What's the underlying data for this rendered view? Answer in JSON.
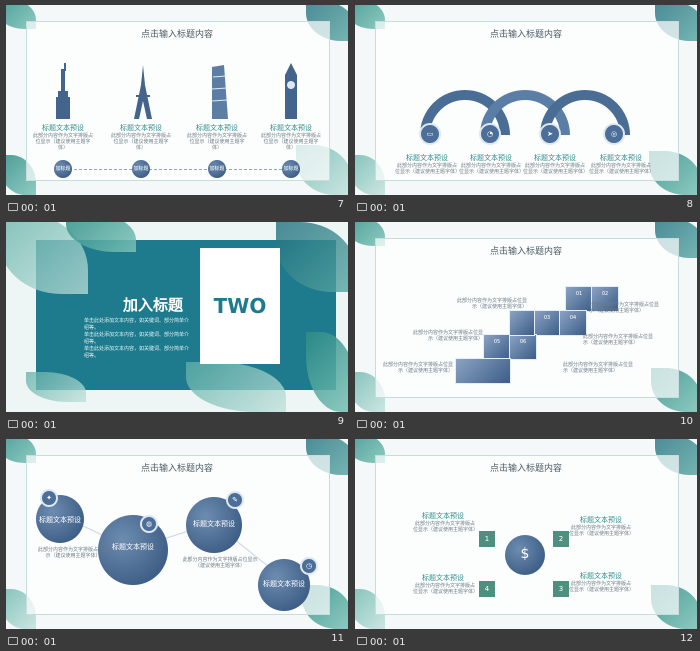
{
  "colors": {
    "accent": "#2e8e8a",
    "panel": "#1e7b8e",
    "stamp": "#3c5d88",
    "bg": "#3a3a3a"
  },
  "slides": [
    {
      "number": "7",
      "time": "00：01",
      "title": "点击输入标题内容",
      "items": [
        {
          "icon": "statue-of-liberty-icon",
          "heading": "标题文本预设",
          "text": "此部分内容作为文字排版占位显示（建议使用主题字体）",
          "tag": "加标题"
        },
        {
          "icon": "eiffel-tower-icon",
          "heading": "标题文本预设",
          "text": "此部分内容作为文字排版占位显示（建议使用主题字体）",
          "tag": "加标题"
        },
        {
          "icon": "leaning-tower-icon",
          "heading": "标题文本预设",
          "text": "此部分内容作为文字排版占位显示（建议使用主题字体）",
          "tag": "加标题"
        },
        {
          "icon": "big-ben-icon",
          "heading": "标题文本预设",
          "text": "此部分内容作为文字排版占位显示（建议使用主题字体）",
          "tag": "加标题"
        }
      ]
    },
    {
      "number": "8",
      "time": "00：01",
      "title": "点击输入标题内容",
      "items": [
        {
          "icon": "monitor-icon",
          "heading": "标题文本预设",
          "text": "此部分内容作为文字排版占位显示（建议使用主题字体）"
        },
        {
          "icon": "bell-icon",
          "heading": "标题文本预设",
          "text": "此部分内容作为文字排版占位显示（建议使用主题字体）"
        },
        {
          "icon": "paper-plane-icon",
          "heading": "标题文本预设",
          "text": "此部分内容作为文字排版占位显示（建议使用主题字体）"
        },
        {
          "icon": "target-icon",
          "heading": "标题文本预设",
          "text": "此部分内容作为文字排版占位显示（建议使用主题字体）"
        }
      ]
    },
    {
      "number": "9",
      "time": "00：01",
      "heading": "加入标题",
      "section": "TWO",
      "lines": [
        "单击此处添加文本内容，如关键词、部分简单介绍等。",
        "单击此处添加文本内容，如关键词、部分简单介绍等。",
        "单击此处添加文本内容，如关键词、部分简单介绍等。"
      ]
    },
    {
      "number": "10",
      "time": "00：01",
      "title": "点击输入标题内容",
      "pieces": [
        "01",
        "02",
        "03",
        "04",
        "05",
        "06"
      ],
      "notes": [
        "此部分内容作为文字排版占位显示（建议使用主题字体）",
        "此部分内容作为文字排版占位显示（建议使用主题字体）",
        "此部分内容作为文字排版占位显示（建议使用主题字体）",
        "此部分内容作为文字排版占位显示（建议使用主题字体）",
        "此部分内容作为文字排版占位显示（建议使用主题字体）",
        "此部分内容作为文字排版占位显示（建议使用主题字体）"
      ]
    },
    {
      "number": "11",
      "time": "00：01",
      "title": "点击输入标题内容",
      "circles": [
        {
          "label": "标题文本预设",
          "icon": "lightbulb-icon"
        },
        {
          "label": "标题文本预设",
          "icon": "globe-icon"
        },
        {
          "label": "标题文本预设",
          "icon": "edit-icon"
        },
        {
          "label": "标题文本预设",
          "icon": "clock-icon"
        }
      ],
      "desc": "此部分内容作为文字排版占位显示（建议使用主题字体）"
    },
    {
      "number": "12",
      "time": "00：01",
      "title": "点击输入标题内容",
      "steps": [
        {
          "n": "1",
          "heading": "标题文本预设",
          "text": "此部分内容作为文字排版占位显示（建议使用主题字体）"
        },
        {
          "n": "2",
          "heading": "标题文本预设",
          "text": "此部分内容作为文字排版占位显示（建议使用主题字体）"
        },
        {
          "n": "3",
          "heading": "标题文本预设",
          "text": "此部分内容作为文字排版占位显示（建议使用主题字体）"
        },
        {
          "n": "4",
          "heading": "标题文本预设",
          "text": "此部分内容作为文字排版占位显示（建议使用主题字体）"
        }
      ],
      "center_icon": "dollar-globe-icon"
    }
  ]
}
